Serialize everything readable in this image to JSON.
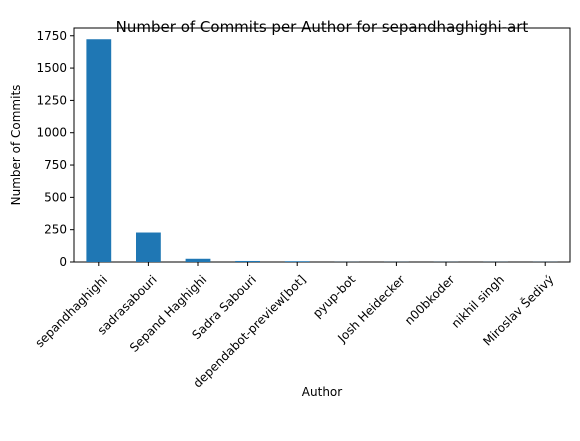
{
  "chart_data": {
    "type": "bar",
    "title": "Number of Commits per Author for sepandhaghighi-art",
    "xlabel": "Author",
    "ylabel": "Number of Commits",
    "categories": [
      "sepandhaghighi",
      "sadrasabouri",
      "Sepand Haghighi",
      "Sadra Sabouri",
      "dependabot-preview[bot]",
      "pyup-bot",
      "Josh Heidecker",
      "n00bkoder",
      "nikhil singh",
      "Miroslav Šedivý"
    ],
    "values": [
      1723,
      228,
      25,
      8,
      6,
      1,
      1,
      1,
      1,
      1
    ],
    "ylim": [
      0,
      1810
    ],
    "yticks": [
      0,
      250,
      500,
      750,
      1000,
      1250,
      1500,
      1750
    ],
    "bar_color": "#1f77b4",
    "grid": false,
    "legend": "none"
  }
}
